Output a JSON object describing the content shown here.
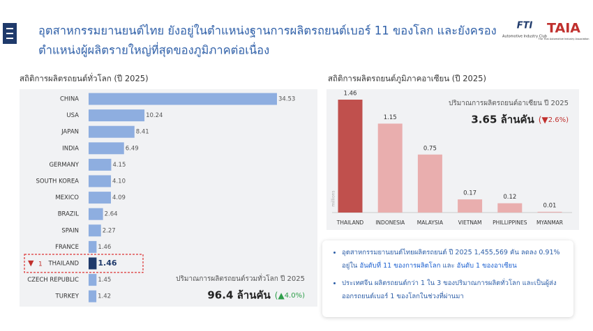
{
  "header": {
    "title_lines": [
      "อุตสาหกรรมยานยนต์ไทย ยังอยู่ในตำแหน่งฐานการผลิตรถยนต์เบอร์ 11 ของโลก และยังครอง",
      "ตำแหน่งผู้ผลิตรายใหญ่ที่สุดของภูมิภาคต่อเนื่อง"
    ],
    "logos": [
      {
        "name": "FTI",
        "caption": "Automotive Industry Club"
      },
      {
        "name": "TAIA",
        "caption": "The Thai Automotive Industry Association"
      }
    ]
  },
  "chart_data": [
    {
      "type": "hbar",
      "title": "สถิติการผลิตรถยนต์ทั่วโลก (ปี 2025)",
      "categories": [
        "CHINA",
        "USA",
        "JAPAN",
        "INDIA",
        "GERMANY",
        "SOUTH  KOREA",
        "MEXICO",
        "BRAZIL",
        "SPAIN",
        "FRANCE",
        "THAILAND",
        "CZECH REPUBLIC",
        "TURKEY"
      ],
      "values": [
        34.53,
        10.24,
        8.41,
        6.49,
        4.15,
        4.1,
        4.09,
        2.64,
        2.27,
        1.46,
        1.46,
        1.45,
        1.42
      ],
      "value_labels": [
        "34.53",
        "10.24",
        "8.41",
        "6.49",
        "4.15",
        "4.10",
        "4.09",
        "2.64",
        "2.27",
        "1.46",
        "1.46",
        "1.45",
        "1.42"
      ],
      "colors": [
        "#8eaee0",
        "#8eaee0",
        "#8eaee0",
        "#8eaee0",
        "#8eaee0",
        "#8eaee0",
        "#8eaee0",
        "#8eaee0",
        "#8eaee0",
        "#8eaee0",
        "#1f3a6b",
        "#8eaee0",
        "#8eaee0"
      ],
      "highlight": {
        "category": "THAILAND",
        "rank": "1"
      },
      "total_caption": "ปริมาณการผลิตรถยนต์รวมทั่วโลก ปี 2025",
      "total": "96.4 ล้านคัน",
      "change": "4.0%",
      "change_direction": "up"
    },
    {
      "type": "bar",
      "title": "สถิติการผลิตรถยนต์ภูมิภาคอาเซียน (ปี 2025)",
      "y_label": "millions",
      "categories": [
        "THAILAND",
        "INDONESIA",
        "MALAYSIA",
        "VIETNAM",
        "PHILLIPPINES",
        "MYANMAR"
      ],
      "values": [
        1.46,
        1.15,
        0.75,
        0.17,
        0.12,
        0.01
      ],
      "colors": [
        "#c0504d",
        "#e9aeae",
        "#e9aeae",
        "#e9aeae",
        "#e9aeae",
        "#e9aeae"
      ],
      "total_caption": "ปริมาณการผลิตรถยนต์อาเซียน ปี 2025",
      "total": "3.65 ล้านคัน",
      "change": "2.6%",
      "change_direction": "down"
    }
  ],
  "bullets": [
    [
      {
        "text": "อุตสาหกรรมยานยนต์ไทยผลิตรถยนต์ ปี 2025 1,455,569 คัน ลดลง 0.91% อยู่ใน",
        "emphasis": false
      },
      {
        "text": "อันดับที่ 11 ของการผลิตโลก",
        "emphasis": true
      },
      {
        "text": "และ",
        "emphasis": false
      },
      {
        "text": "อันดับ 1 ของอาเซียน",
        "emphasis": true
      }
    ],
    [
      {
        "text": "ประเทศจีน ผลิตรถยนต์กว่า 1 ใน 3 ของปริมาณการผลิตทั่วโลก และเป็นผู้ส่งออกรถยนต์เบอร์ 1 ของโลกในช่วงที่ผ่านมา",
        "emphasis": false
      }
    ]
  ]
}
